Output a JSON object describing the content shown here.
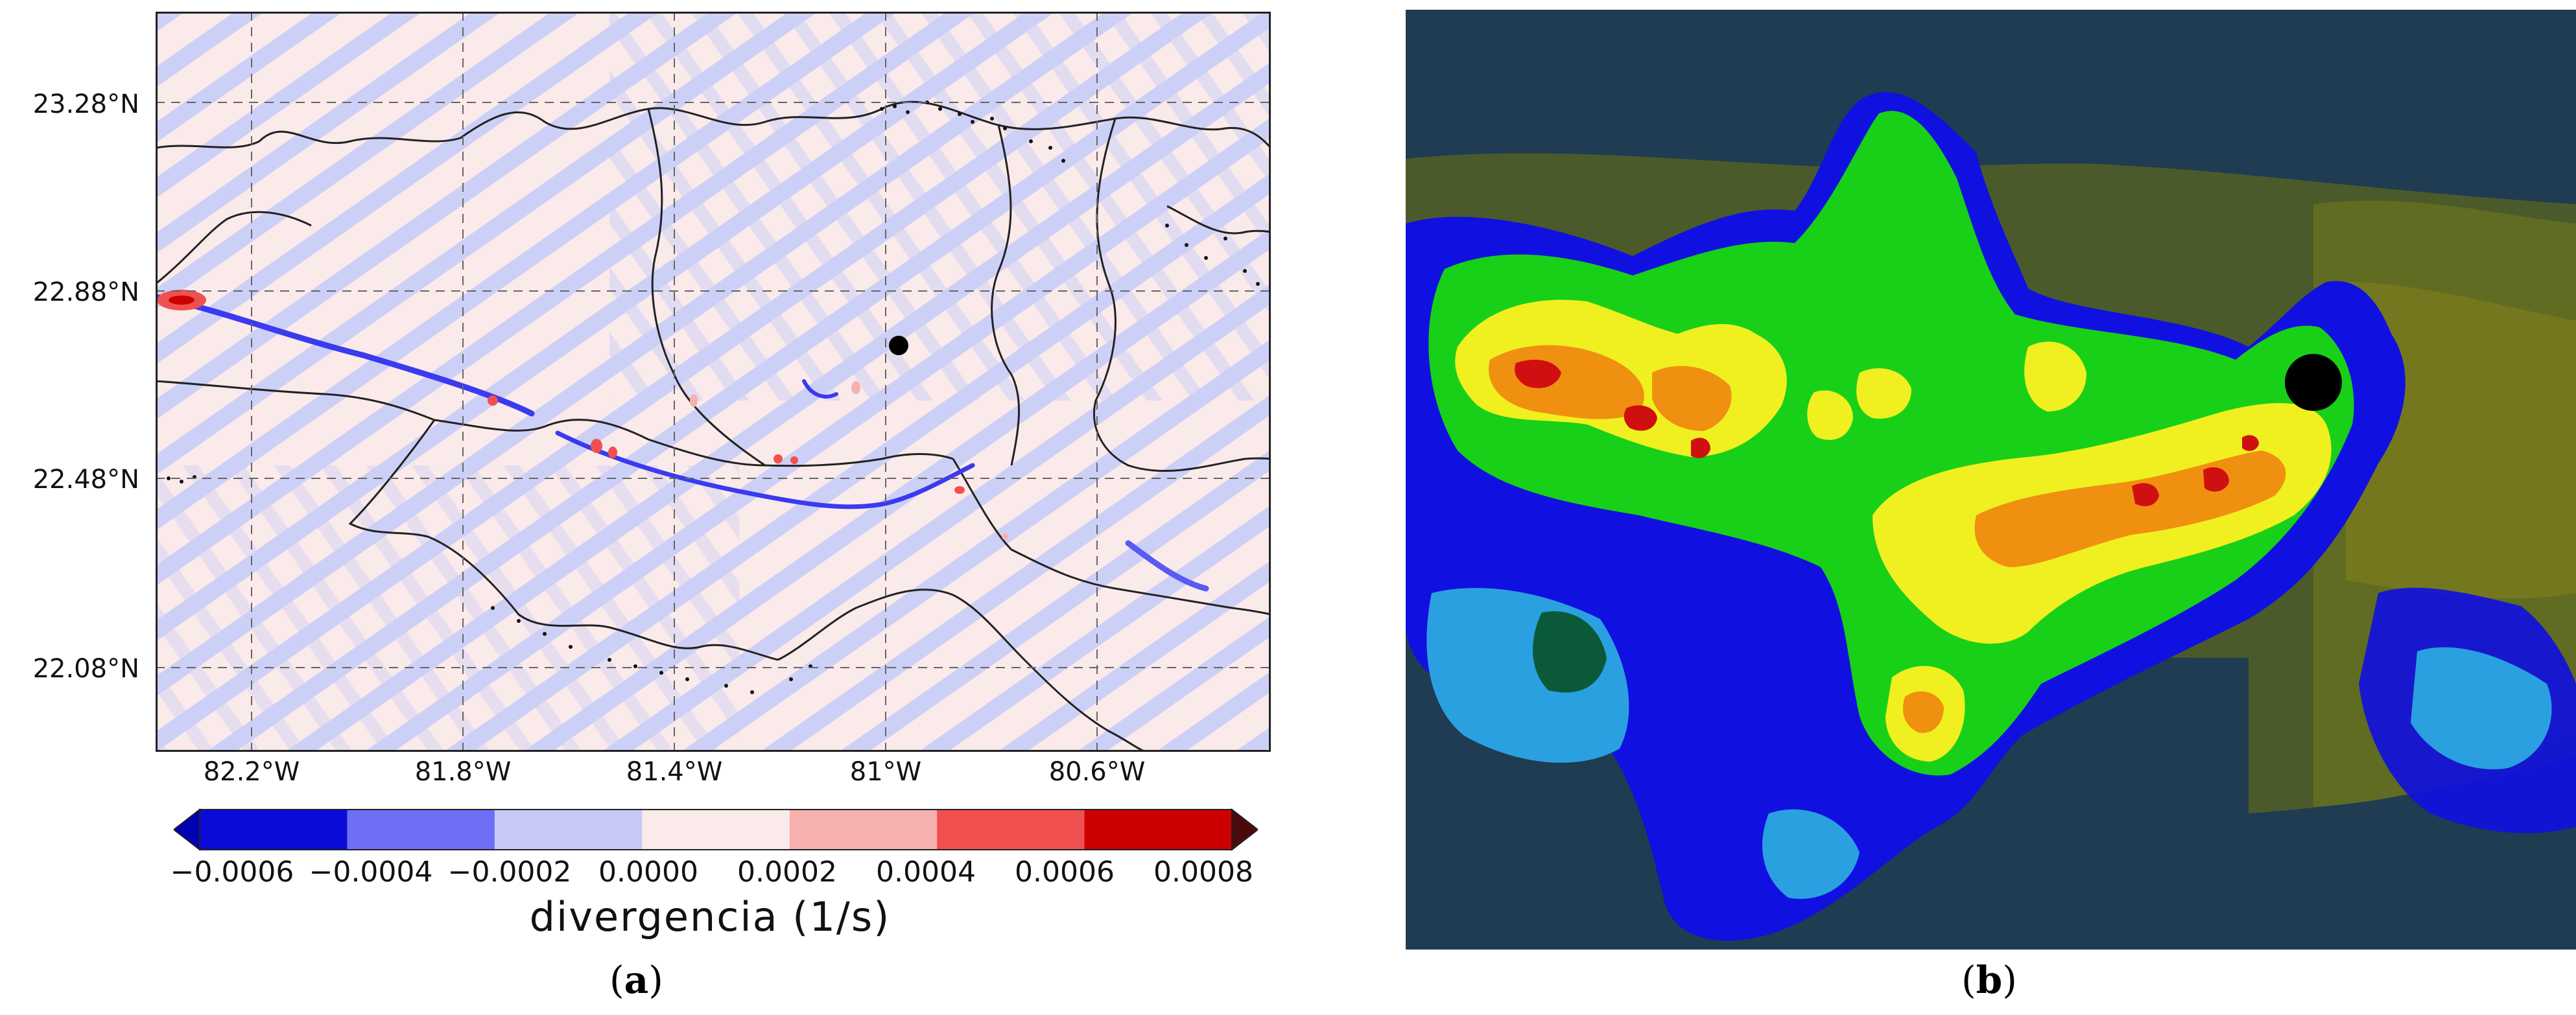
{
  "panel_a": {
    "tag_open": "(",
    "tag_letter": "a",
    "tag_close": ")",
    "lat_labels": [
      "23.28°N",
      "22.88°N",
      "22.48°N",
      "22.08°N"
    ],
    "lon_labels": [
      "82.2°W",
      "81.8°W",
      "81.4°W",
      "81°W",
      "80.6°W"
    ],
    "colorbar": {
      "title": "divergencia (1/s)",
      "ticks": [
        "−0.0006",
        "−0.0004",
        "−0.0002",
        "0.0000",
        "0.0002",
        "0.0004",
        "0.0006",
        "0.0008"
      ],
      "colors": [
        "#0b0bd9",
        "#6f6ff5",
        "#c9c9f7",
        "#fbeaea",
        "#f7b0b0",
        "#f05050",
        "#cc0000"
      ],
      "under_color": "#0000b3",
      "over_color": "#4a0a0a"
    },
    "marker": "point-location"
  },
  "panel_b": {
    "tag_open": "(",
    "tag_letter": "b",
    "tag_close": ")",
    "marker": "point-location",
    "background_color": "#1f3c52"
  },
  "chart_data": [
    {
      "type": "heatmap",
      "title": "",
      "xlabel": "",
      "ylabel": "",
      "x_tick_labels": [
        "82.2°W",
        "81.8°W",
        "81.4°W",
        "81°W",
        "80.6°W"
      ],
      "y_tick_labels": [
        "23.28°N",
        "22.88°N",
        "22.48°N",
        "22.08°N"
      ],
      "xlim": [
        -82.4,
        -80.3
      ],
      "ylim": [
        21.97,
        23.38
      ],
      "grid": true,
      "colorbar_label": "divergencia (1/s)",
      "colorbar_range": [
        -0.0006,
        0.0008
      ],
      "colorbar_step": 0.0002
    }
  ]
}
